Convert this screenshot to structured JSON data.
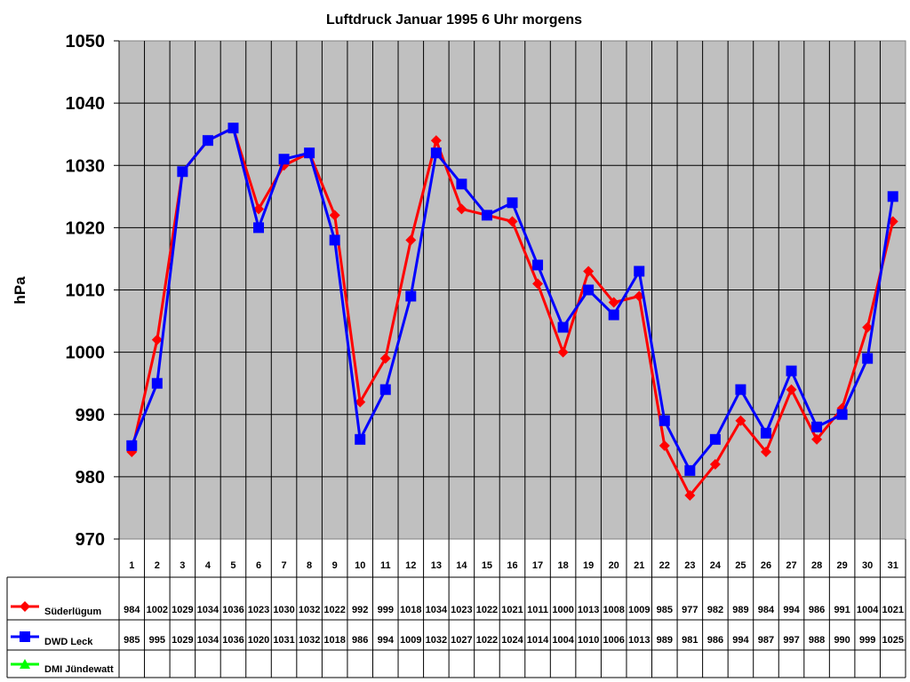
{
  "chart_data": {
    "type": "line",
    "title": "Luftdruck Januar 1995 6 Uhr morgens",
    "xlabel": "",
    "ylabel": "hPa",
    "ylim": [
      970,
      1050
    ],
    "yticks": [
      970,
      980,
      990,
      1000,
      1010,
      1020,
      1030,
      1040,
      1050
    ],
    "grid": true,
    "legend_position": "data-table-left",
    "categories": [
      "1",
      "2",
      "3",
      "4",
      "5",
      "6",
      "7",
      "8",
      "9",
      "10",
      "11",
      "12",
      "13",
      "14",
      "15",
      "16",
      "17",
      "18",
      "19",
      "20",
      "21",
      "22",
      "23",
      "24",
      "25",
      "26",
      "27",
      "28",
      "29",
      "30",
      "31"
    ],
    "series": [
      {
        "name": "Süderlügum",
        "color": "#ff0000",
        "marker": "diamond",
        "values": [
          984,
          1002,
          1029,
          1034,
          1036,
          1023,
          1030,
          1032,
          1022,
          992,
          999,
          1018,
          1034,
          1023,
          1022,
          1021,
          1011,
          1000,
          1013,
          1008,
          1009,
          985,
          977,
          982,
          989,
          984,
          994,
          986,
          991,
          1004,
          1021
        ]
      },
      {
        "name": "DWD Leck",
        "color": "#0000ff",
        "marker": "square",
        "values": [
          985,
          995,
          1029,
          1034,
          1036,
          1020,
          1031,
          1032,
          1018,
          986,
          994,
          1009,
          1032,
          1027,
          1022,
          1024,
          1014,
          1004,
          1010,
          1006,
          1013,
          989,
          981,
          986,
          994,
          987,
          997,
          988,
          990,
          999,
          1025
        ]
      },
      {
        "name": "DMI Jündewatt",
        "color": "#00ff00",
        "marker": "triangle",
        "values": []
      }
    ]
  },
  "style": {
    "plot_background": "#c0c0c0",
    "grid_color": "#000000"
  }
}
